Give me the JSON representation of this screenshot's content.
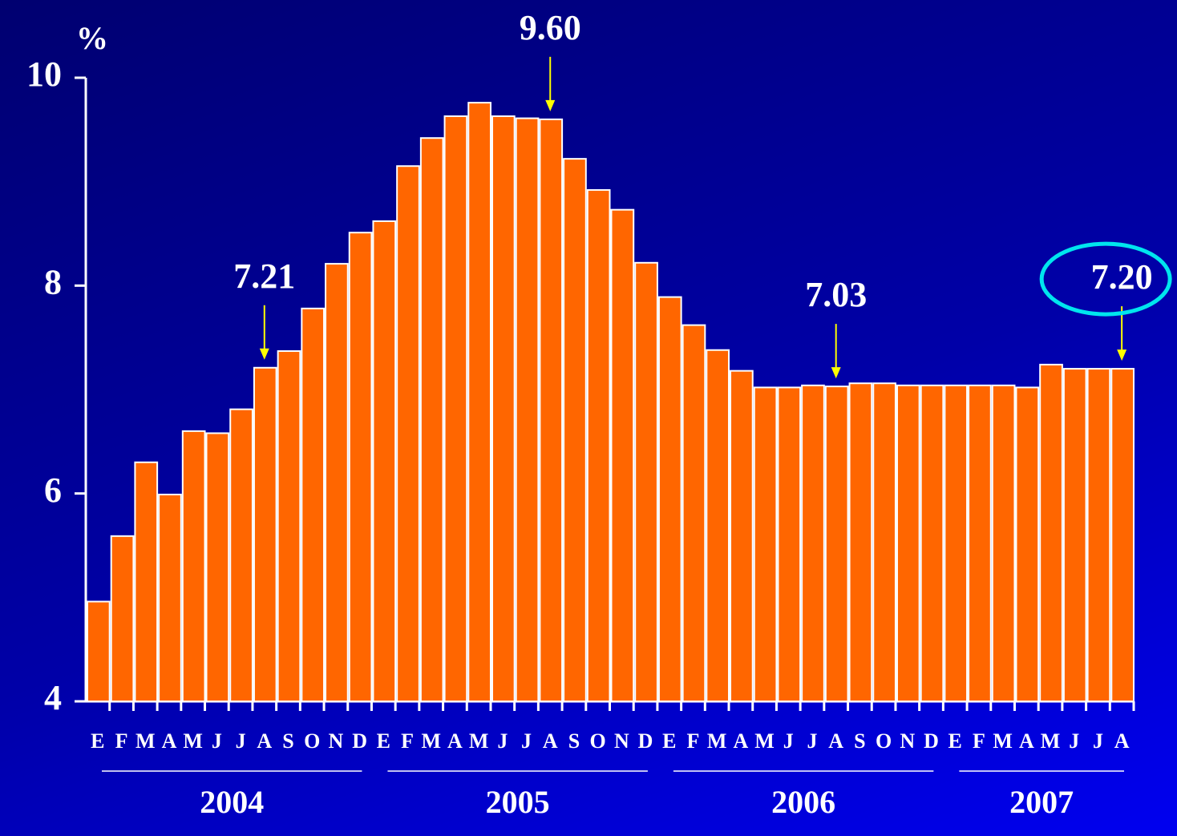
{
  "chart_data": {
    "type": "bar",
    "y_label": "%",
    "color": "#ff6600",
    "ylim": [
      4,
      10
    ],
    "yticks": [
      4,
      6,
      8,
      10
    ],
    "groups": [
      {
        "label": "2004",
        "categories": [
          "E",
          "F",
          "M",
          "A",
          "M",
          "J",
          "J",
          "A",
          "S",
          "O",
          "N",
          "D"
        ],
        "values": [
          4.96,
          5.59,
          6.3,
          5.99,
          6.6,
          6.58,
          6.81,
          7.21,
          7.37,
          7.78,
          8.21,
          8.51
        ],
        "value_labels": [
          null,
          null,
          null,
          null,
          null,
          null,
          null,
          "7.21",
          null,
          null,
          null,
          null
        ]
      },
      {
        "label": "2005",
        "categories": [
          "E",
          "F",
          "M",
          "A",
          "M",
          "J",
          "J",
          "A",
          "S",
          "O",
          "N",
          "D"
        ],
        "values": [
          8.62,
          9.15,
          9.42,
          9.63,
          9.76,
          9.63,
          9.61,
          9.6,
          9.22,
          8.92,
          8.73,
          8.22
        ],
        "value_labels": [
          null,
          null,
          null,
          null,
          null,
          null,
          null,
          "9.60",
          null,
          null,
          null,
          null
        ]
      },
      {
        "label": "2006",
        "categories": [
          "E",
          "F",
          "M",
          "A",
          "M",
          "J",
          "J",
          "A",
          "S",
          "O",
          "N",
          "D"
        ],
        "values": [
          7.89,
          7.62,
          7.38,
          7.18,
          7.02,
          7.02,
          7.04,
          7.03,
          7.06,
          7.06,
          7.04,
          7.04
        ],
        "value_labels": [
          null,
          null,
          null,
          null,
          null,
          null,
          null,
          "7.03",
          null,
          null,
          null,
          null
        ]
      },
      {
        "label": "2007",
        "categories": [
          "E",
          "F",
          "M",
          "A",
          "M",
          "J",
          "J",
          "A"
        ],
        "values": [
          7.04,
          7.04,
          7.04,
          7.02,
          7.24,
          7.2,
          7.2,
          7.2
        ],
        "value_labels": [
          null,
          null,
          null,
          null,
          null,
          null,
          null,
          "7.20"
        ]
      }
    ]
  }
}
